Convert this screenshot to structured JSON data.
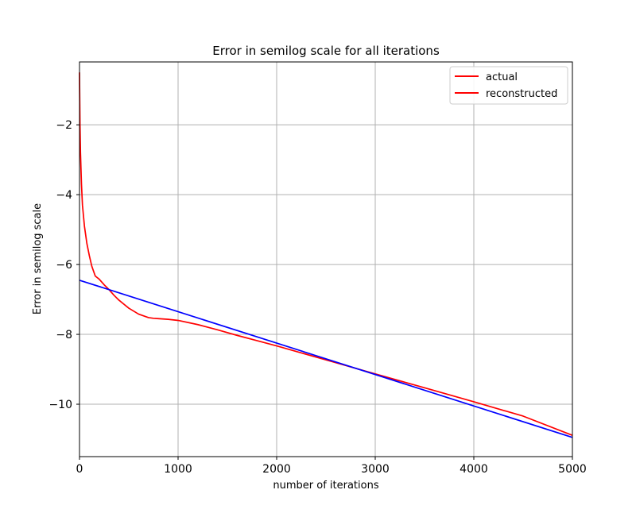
{
  "chart_data": {
    "type": "line",
    "title": "Error in semilog scale for all iterations",
    "xlabel": "number of iterations",
    "ylabel": "Error in semilog scale",
    "xlim": [
      0,
      5000
    ],
    "ylim": [
      -11.5,
      -0.2
    ],
    "xticks": [
      0,
      1000,
      2000,
      3000,
      4000,
      5000
    ],
    "xtick_labels": [
      "0",
      "1000",
      "2000",
      "3000",
      "4000",
      "5000"
    ],
    "yticks": [
      -2,
      -4,
      -6,
      -8,
      -10
    ],
    "ytick_labels": [
      "−2",
      "−4",
      "−6",
      "−8",
      "−10"
    ],
    "grid": true,
    "legend": {
      "placement": "top-right",
      "entries": [
        {
          "label": "actual",
          "color": "#ff0000"
        },
        {
          "label": "reconstructed",
          "color": "#ff0000"
        }
      ]
    },
    "series": [
      {
        "color": "#ff0000",
        "x": [
          0,
          5,
          10,
          20,
          30,
          50,
          75,
          100,
          125,
          160,
          200,
          250,
          300,
          350,
          400,
          500,
          600,
          700,
          750,
          800,
          900,
          1000,
          1200,
          1400,
          1600,
          1800,
          2000,
          2500,
          3000,
          3500,
          4000,
          4500,
          5000
        ],
        "y": [
          -0.5,
          -2.0,
          -2.8,
          -3.7,
          -4.3,
          -4.9,
          -5.4,
          -5.75,
          -6.05,
          -6.33,
          -6.42,
          -6.58,
          -6.72,
          -6.88,
          -7.02,
          -7.25,
          -7.42,
          -7.52,
          -7.54,
          -7.55,
          -7.57,
          -7.6,
          -7.72,
          -7.87,
          -8.03,
          -8.18,
          -8.33,
          -8.73,
          -9.13,
          -9.53,
          -9.93,
          -10.34,
          -10.89
        ]
      },
      {
        "color": "#0000ff",
        "x": [
          0,
          5000
        ],
        "y": [
          -6.45,
          -10.95
        ]
      }
    ]
  }
}
